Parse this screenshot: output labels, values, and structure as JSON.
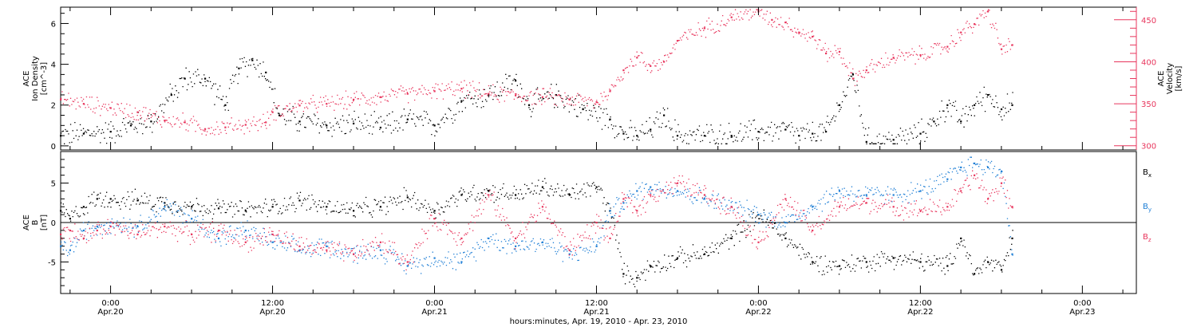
{
  "colors": {
    "black": "#000000",
    "pink": "#e8365d",
    "blue": "#1f7fd6",
    "axis": "#000000"
  },
  "x_axis": {
    "caption": "hours:minutes, Apr. 19, 2010 - Apr. 23, 2010",
    "ticks": [
      {
        "t": 24,
        "time": "0:00",
        "date": "Apr.20"
      },
      {
        "t": 36,
        "time": "12:00",
        "date": "Apr.20"
      },
      {
        "t": 48,
        "time": "0:00",
        "date": "Apr.21"
      },
      {
        "t": 60,
        "time": "12:00",
        "date": "Apr.21"
      },
      {
        "t": 72,
        "time": "0:00",
        "date": "Apr.22"
      },
      {
        "t": 84,
        "time": "12:00",
        "date": "Apr.22"
      },
      {
        "t": 96,
        "time": "0:00",
        "date": "Apr.23"
      }
    ]
  },
  "chart_data": [
    {
      "type": "scatter",
      "panel": "top",
      "xlim": [
        20.3,
        100.0
      ],
      "ylim": [
        -0.2,
        6.8
      ],
      "ylabel": [
        "ACE",
        "Ion Density",
        "[cm^-3]"
      ],
      "yticks": [
        "0",
        "2",
        "4",
        "6"
      ],
      "ytick_values": [
        0,
        2,
        4,
        6
      ],
      "right_axis": {
        "ylabel": [
          "ACE",
          "Velocity",
          "[km/s]"
        ],
        "ylim": [
          295,
          465
        ],
        "yticks": [
          "300",
          "350",
          "400",
          "450"
        ],
        "ytick_values": [
          300,
          350,
          400,
          450
        ],
        "color": "#e8365d"
      },
      "series": [
        {
          "axis": "left",
          "color": "#000000",
          "x": [
            20.3,
            22,
            24,
            25.5,
            27,
            28.5,
            29.5,
            31,
            32.5,
            33.5,
            34.5,
            35.5,
            36.5,
            38,
            40,
            42,
            44,
            46,
            48,
            50,
            52,
            54,
            55,
            57,
            59,
            61,
            62,
            63,
            64,
            65,
            66,
            68,
            70,
            72,
            74,
            75,
            76,
            77,
            78,
            79,
            80,
            82,
            84,
            85,
            86,
            87,
            88,
            89,
            90,
            90.8
          ],
          "y": [
            0.5,
            0.6,
            0.7,
            1.0,
            1.2,
            2.5,
            3.3,
            3.3,
            2.0,
            3.8,
            4.2,
            3.6,
            1.5,
            1.2,
            1.0,
            1.1,
            0.9,
            1.3,
            1.0,
            2.2,
            2.5,
            3.2,
            2.0,
            2.5,
            1.8,
            1.3,
            0.6,
            0.5,
            0.8,
            1.5,
            0.5,
            0.5,
            0.5,
            0.7,
            0.8,
            0.5,
            0.6,
            0.7,
            2.0,
            3.5,
            0.2,
            0.3,
            0.6,
            1.2,
            2.0,
            1.2,
            2.0,
            2.5,
            1.8,
            2.0
          ]
        },
        {
          "axis": "right",
          "color": "#e8365d",
          "x": [
            20.3,
            22,
            24,
            26,
            28,
            29.5,
            31,
            32.5,
            34,
            35.5,
            36,
            38,
            40,
            42,
            44,
            46,
            48,
            50,
            52,
            54,
            56,
            58,
            60,
            61,
            62,
            63,
            64,
            65,
            66,
            68,
            70,
            72,
            73,
            74,
            75,
            76,
            77,
            78,
            79,
            80,
            82,
            84,
            86,
            87,
            88,
            89,
            90,
            90.8
          ],
          "y": [
            355,
            350,
            345,
            340,
            330,
            328,
            320,
            322,
            325,
            328,
            340,
            348,
            350,
            355,
            358,
            362,
            365,
            368,
            362,
            360,
            358,
            355,
            352,
            365,
            390,
            405,
            395,
            400,
            425,
            440,
            453,
            460,
            450,
            447,
            435,
            430,
            410,
            412,
            380,
            390,
            405,
            408,
            418,
            435,
            445,
            460,
            415,
            420
          ]
        }
      ]
    },
    {
      "type": "scatter",
      "panel": "bottom",
      "xlim": [
        20.3,
        100.0
      ],
      "ylim": [
        -9,
        9
      ],
      "ylabel": [
        "ACE",
        "B",
        "[nT]"
      ],
      "yticks": [
        "-5",
        "0",
        "5"
      ],
      "ytick_values": [
        -5,
        0,
        5
      ],
      "legend": [
        {
          "label": "Bx",
          "main": "B",
          "sub": "x",
          "color": "#000000"
        },
        {
          "label": "By",
          "main": "B",
          "sub": "y",
          "color": "#1f7fd6"
        },
        {
          "label": "Bz",
          "main": "B",
          "sub": "z",
          "color": "#e8365d"
        }
      ],
      "series": [
        {
          "name": "Bx",
          "color": "#000000",
          "x": [
            20.3,
            21,
            22,
            23,
            24,
            26,
            28,
            30,
            32,
            34,
            36,
            38,
            40,
            42,
            44,
            46,
            48,
            50,
            52,
            54,
            56,
            58,
            60,
            61,
            62,
            63,
            64,
            66,
            68,
            70,
            72,
            74,
            76,
            78,
            80,
            82,
            84,
            86,
            87,
            88,
            89,
            90,
            90.8
          ],
          "y": [
            1.5,
            0.5,
            2.0,
            3.0,
            3.0,
            2.8,
            2.5,
            2.0,
            1.8,
            1.5,
            2.0,
            2.8,
            2.0,
            1.5,
            2.0,
            3.2,
            1.5,
            3.5,
            4.0,
            3.5,
            4.5,
            3.5,
            4.5,
            1.5,
            -6.5,
            -7.0,
            -5.5,
            -4.5,
            -4.0,
            -2.0,
            1.0,
            -2.0,
            -5.0,
            -5.5,
            -5.0,
            -4.5,
            -5.0,
            -5.5,
            -2.0,
            -6.5,
            -5.0,
            -6.0,
            -2.0
          ]
        },
        {
          "name": "By",
          "color": "#1f7fd6",
          "x": [
            20.3,
            21,
            22,
            23,
            24,
            26,
            28,
            30,
            32,
            34,
            36,
            38,
            40,
            42,
            44,
            46,
            48,
            50,
            52,
            54,
            56,
            58,
            60,
            61,
            62,
            63,
            64,
            66,
            68,
            70,
            72,
            74,
            76,
            78,
            80,
            82,
            84,
            86,
            87,
            88,
            89,
            90,
            90.8
          ],
          "y": [
            -3.0,
            -3.5,
            -1.0,
            -0.5,
            0.0,
            -0.5,
            2.0,
            0.5,
            -2.0,
            -1.0,
            -2.5,
            -3.5,
            -3.0,
            -4.0,
            -3.5,
            -5.5,
            -4.5,
            -5.0,
            -2.0,
            -3.0,
            -2.5,
            -4.0,
            -3.0,
            1.5,
            2.5,
            4.0,
            4.5,
            4.0,
            3.0,
            2.0,
            1.0,
            0.0,
            2.0,
            4.0,
            3.5,
            3.5,
            4.0,
            5.5,
            7.0,
            7.5,
            7.0,
            6.5,
            -4.0
          ]
        },
        {
          "name": "Bz",
          "color": "#e8365d",
          "x": [
            20.3,
            21,
            22,
            23,
            24,
            26,
            28,
            30,
            32,
            34,
            36,
            38,
            40,
            42,
            44,
            46,
            48,
            50,
            52,
            54,
            56,
            58,
            60,
            61,
            62,
            63,
            64,
            66,
            68,
            70,
            72,
            74,
            76,
            78,
            80,
            82,
            84,
            86,
            87,
            88,
            89,
            90,
            90.8
          ],
          "y": [
            -1.5,
            -1.0,
            -2.0,
            -1.0,
            -0.5,
            -1.5,
            -0.5,
            -1.5,
            -1.0,
            -2.5,
            -1.5,
            -3.0,
            -3.5,
            -4.0,
            -2.5,
            -5.0,
            0.5,
            -2.0,
            3.5,
            -2.0,
            2.0,
            -3.5,
            0.0,
            -2.0,
            3.0,
            1.5,
            3.5,
            5.0,
            3.5,
            2.0,
            -2.5,
            3.0,
            -1.0,
            2.0,
            2.5,
            2.0,
            1.5,
            2.0,
            4.0,
            6.0,
            3.0,
            5.0,
            2.0
          ]
        }
      ]
    }
  ]
}
